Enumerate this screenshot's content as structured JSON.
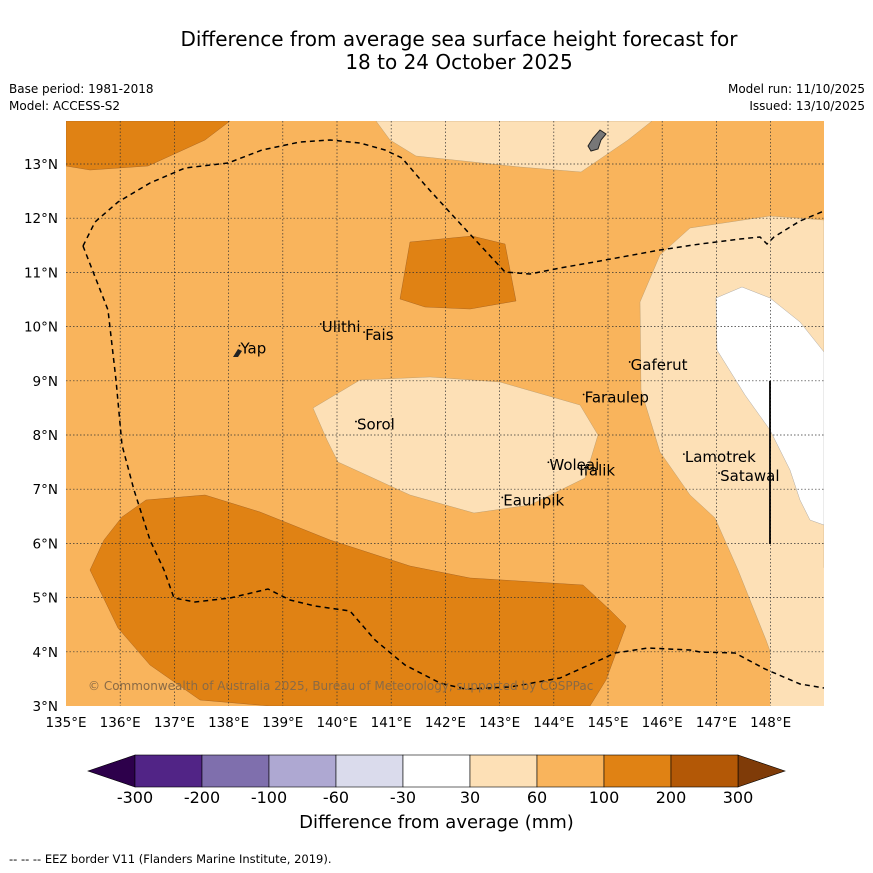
{
  "title_line1": "Difference from average sea surface height forecast for",
  "title_line2": "18 to 24 October 2025",
  "base_period": "Base period: 1981-2018",
  "model": "Model: ACCESS-S2",
  "model_run": "Model run: 11/10/2025",
  "issued": "Issued: 13/10/2025",
  "copyright": "© Commonwealth of Australia 2025, Bureau of Meteorology, supported by COSPPac",
  "footer": "--  --  -- EEZ border V11 (Flanders Marine Institute, 2019).",
  "colorbar": {
    "title": "Difference from average (mm)",
    "ticks": [
      "-300",
      "-200",
      "-100",
      "-60",
      "-30",
      "30",
      "60",
      "100",
      "200",
      "300"
    ],
    "colors": [
      "#512486",
      "#7f6fad",
      "#aea8d2",
      "#dadbec",
      "#ffffff",
      "#fde0b6",
      "#f9b45c",
      "#e08214",
      "#b35806"
    ],
    "under_color": "#2d004b",
    "over_color": "#7f3b08"
  },
  "map": {
    "lon_labels": [
      "135°E",
      "136°E",
      "137°E",
      "138°E",
      "139°E",
      "140°E",
      "141°E",
      "142°E",
      "143°E",
      "144°E",
      "145°E",
      "146°E",
      "147°E",
      "148°E"
    ],
    "lat_labels": [
      "3°N",
      "4°N",
      "5°N",
      "6°N",
      "7°N",
      "8°N",
      "9°N",
      "10°N",
      "11°N",
      "12°N",
      "13°N"
    ],
    "places": [
      {
        "name": "Yap",
        "lon": 138.2,
        "lat": 9.5
      },
      {
        "name": "Ulithi",
        "lon": 139.7,
        "lat": 9.9
      },
      {
        "name": "Fais",
        "lon": 140.5,
        "lat": 9.75
      },
      {
        "name": "Sorol",
        "lon": 140.35,
        "lat": 8.1
      },
      {
        "name": "Gaferut",
        "lon": 145.4,
        "lat": 9.2
      },
      {
        "name": "Faraulep",
        "lon": 144.55,
        "lat": 8.6
      },
      {
        "name": "Woleai",
        "lon": 143.9,
        "lat": 7.35
      },
      {
        "name": "Ifalik",
        "lon": 144.45,
        "lat": 7.25
      },
      {
        "name": "Lamotrek",
        "lon": 146.4,
        "lat": 7.5
      },
      {
        "name": "Satawal",
        "lon": 147.05,
        "lat": 7.15
      },
      {
        "name": "Eauripik",
        "lon": 143.05,
        "lat": 6.7
      }
    ]
  }
}
